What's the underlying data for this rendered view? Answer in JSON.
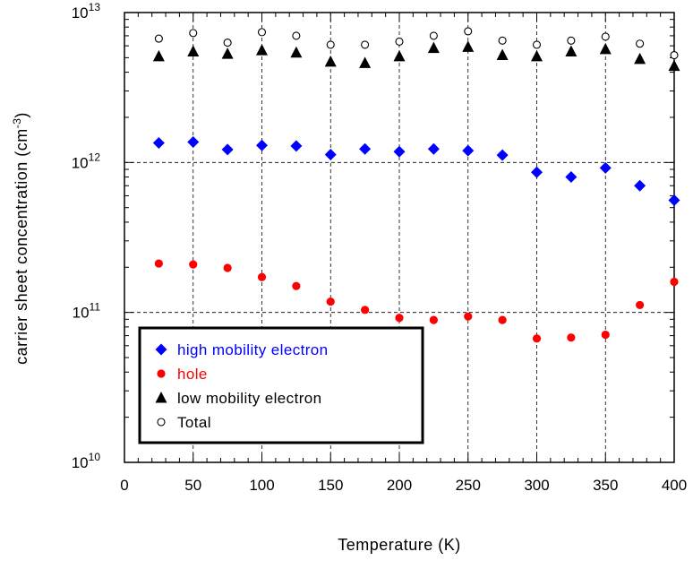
{
  "chart_data": {
    "type": "scatter",
    "xlabel": "Temperature (K)",
    "ylabel": "carrier sheet concentration (cm",
    "ylabel_sup": "-3",
    "ylabel_close": ")",
    "xlim": [
      0,
      400
    ],
    "ylim": [
      10000000000,
      10000000000000
    ],
    "yscale": "log",
    "x_ticks": [
      0,
      50,
      100,
      150,
      200,
      250,
      300,
      350,
      400
    ],
    "x_tick_labels": [
      "0",
      "50",
      "100",
      "150",
      "200",
      "250",
      "300",
      "350",
      "400"
    ],
    "y_ticks": [
      {
        "value": 10000000000,
        "base": "10",
        "exp": "10"
      },
      {
        "value": 100000000000,
        "base": "10",
        "exp": "11"
      },
      {
        "value": 1000000000000,
        "base": "10",
        "exp": "12"
      },
      {
        "value": 10000000000000,
        "base": "10",
        "exp": "13"
      }
    ],
    "grid": "dashed at major ticks",
    "legend_position": "bottom-left",
    "x": [
      25,
      50,
      75,
      100,
      125,
      150,
      175,
      200,
      225,
      250,
      275,
      300,
      325,
      350,
      375,
      400
    ],
    "series": [
      {
        "name": "high mobility electron",
        "marker": "diamond",
        "color": "#0000ff",
        "text_color": "#0000ff",
        "values": [
          1350000000000.0,
          1370000000000.0,
          1220000000000.0,
          1300000000000.0,
          1290000000000.0,
          1130000000000.0,
          1230000000000.0,
          1180000000000.0,
          1230000000000.0,
          1200000000000.0,
          1120000000000.0,
          860000000000.0,
          800000000000.0,
          920000000000.0,
          700000000000.0,
          560000000000.0
        ]
      },
      {
        "name": "hole",
        "marker": "circle-filled",
        "color": "#ff0000",
        "text_color": "#ff0000",
        "values": [
          212000000000.0,
          209000000000.0,
          198000000000.0,
          172000000000.0,
          150000000000.0,
          118000000000.0,
          104000000000.0,
          92000000000.0,
          89000000000.0,
          94000000000.0,
          89000000000.0,
          67000000000.0,
          68000000000.0,
          71000000000.0,
          112000000000.0,
          160000000000.0
        ]
      },
      {
        "name": "low mobility electron",
        "marker": "triangle",
        "color": "#000000",
        "text_color": "#000000",
        "values": [
          5100000000000.0,
          5500000000000.0,
          5300000000000.0,
          5600000000000.0,
          5400000000000.0,
          4700000000000.0,
          4600000000000.0,
          5100000000000.0,
          5800000000000.0,
          5900000000000.0,
          5200000000000.0,
          5100000000000.0,
          5500000000000.0,
          5700000000000.0,
          4900000000000.0,
          4400000000000.0
        ]
      },
      {
        "name": "Total",
        "marker": "circle-open",
        "color": "#000000",
        "text_color": "#000000",
        "values": [
          6700000000000.0,
          7300000000000.0,
          6300000000000.0,
          7400000000000.0,
          7000000000000.0,
          6100000000000.0,
          6100000000000.0,
          6400000000000.0,
          7000000000000.0,
          7500000000000.0,
          6500000000000.0,
          6100000000000.0,
          6500000000000.0,
          6900000000000.0,
          6200000000000.0,
          5200000000000.0
        ]
      }
    ]
  }
}
